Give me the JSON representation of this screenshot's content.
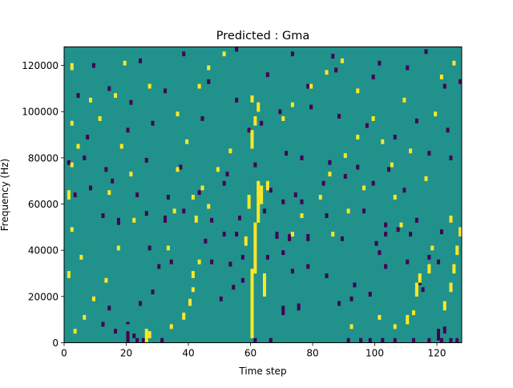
{
  "chart_data": {
    "type": "heatmap",
    "title": "Predicted : Gma",
    "xlabel": "Time step",
    "ylabel": "Frequency (Hz)",
    "xlim": [
      0,
      128
    ],
    "ylim": [
      0,
      128000
    ],
    "x_ticks": [
      {
        "value": 0,
        "label": "0"
      },
      {
        "value": 20,
        "label": "20"
      },
      {
        "value": 40,
        "label": "40"
      },
      {
        "value": 60,
        "label": "60"
      },
      {
        "value": 80,
        "label": "80"
      },
      {
        "value": 100,
        "label": "100"
      },
      {
        "value": 120,
        "label": "120"
      }
    ],
    "y_ticks": [
      {
        "value": 0,
        "label": "0"
      },
      {
        "value": 20000,
        "label": "20000"
      },
      {
        "value": 40000,
        "label": "40000"
      },
      {
        "value": 60000,
        "label": "60000"
      },
      {
        "value": 80000,
        "label": "80000"
      },
      {
        "value": 100000,
        "label": "100000"
      },
      {
        "value": 120000,
        "label": "120000"
      }
    ],
    "grid": false,
    "colormap": "viridis",
    "colors": {
      "background": "#21918c",
      "low": "#440154",
      "high": "#fde725"
    },
    "grid_size": [
      128,
      128
    ],
    "bin_width_hz": 1000,
    "background_value": 0,
    "low_cells": [
      [
        20,
        0,
        5
      ],
      [
        23,
        0,
        2
      ],
      [
        25,
        0,
        2
      ],
      [
        22,
        2,
        2
      ],
      [
        31,
        0,
        2
      ],
      [
        16,
        4,
        2
      ],
      [
        12,
        7,
        2
      ],
      [
        20,
        8,
        1
      ],
      [
        61,
        0,
        2
      ],
      [
        66,
        0,
        2
      ],
      [
        91,
        0,
        2
      ],
      [
        95,
        0,
        2
      ],
      [
        98,
        0,
        2
      ],
      [
        102,
        0,
        2
      ],
      [
        106,
        0,
        2
      ],
      [
        112,
        0,
        2
      ],
      [
        117,
        0,
        2
      ],
      [
        121,
        0,
        2
      ],
      [
        122,
        4,
        3
      ],
      [
        120,
        1,
        5
      ],
      [
        124,
        0,
        2
      ],
      [
        126,
        0,
        2
      ],
      [
        70,
        12,
        4
      ],
      [
        75,
        14,
        3
      ],
      [
        88,
        16,
        2
      ],
      [
        92,
        18,
        2
      ],
      [
        98,
        20,
        2
      ],
      [
        115,
        22,
        2
      ],
      [
        114,
        25,
        2
      ],
      [
        14,
        14,
        2
      ],
      [
        24,
        16,
        2
      ],
      [
        28,
        21,
        2
      ],
      [
        50,
        18,
        2
      ],
      [
        54,
        23,
        2
      ],
      [
        57,
        26,
        2
      ],
      [
        60,
        29,
        2
      ],
      [
        73,
        30,
        2
      ],
      [
        78,
        32,
        2
      ],
      [
        84,
        28,
        2
      ],
      [
        93,
        24,
        2
      ],
      [
        103,
        32,
        2
      ],
      [
        110,
        34,
        2
      ],
      [
        30,
        32,
        2
      ],
      [
        34,
        34,
        2
      ],
      [
        47,
        34,
        2
      ],
      [
        53,
        33,
        2
      ],
      [
        57,
        36,
        2
      ],
      [
        65,
        36,
        2
      ],
      [
        70,
        38,
        2
      ],
      [
        101,
        38,
        2
      ],
      [
        117,
        36,
        2
      ],
      [
        120,
        34,
        2
      ],
      [
        27,
        40,
        2
      ],
      [
        45,
        43,
        2
      ],
      [
        51,
        46,
        2
      ],
      [
        55,
        46,
        2
      ],
      [
        68,
        45,
        3
      ],
      [
        72,
        44,
        3
      ],
      [
        78,
        44,
        3
      ],
      [
        89,
        44,
        2
      ],
      [
        100,
        42,
        2
      ],
      [
        103,
        46,
        2
      ],
      [
        107,
        48,
        2
      ],
      [
        111,
        46,
        2
      ],
      [
        121,
        47,
        2
      ],
      [
        12,
        54,
        2
      ],
      [
        17,
        51,
        3
      ],
      [
        26,
        55,
        2
      ],
      [
        32,
        52,
        3
      ],
      [
        38,
        56,
        2
      ],
      [
        47,
        52,
        2
      ],
      [
        56,
        53,
        2
      ],
      [
        64,
        56,
        2
      ],
      [
        70,
        60,
        2
      ],
      [
        76,
        60,
        2
      ],
      [
        84,
        54,
        2
      ],
      [
        96,
        56,
        2
      ],
      [
        103,
        50,
        2
      ],
      [
        113,
        52,
        2
      ],
      [
        3,
        63,
        2
      ],
      [
        8,
        66,
        2
      ],
      [
        15,
        69,
        2
      ],
      [
        23,
        63,
        2
      ],
      [
        33,
        62,
        2
      ],
      [
        43,
        64,
        2
      ],
      [
        51,
        68,
        2
      ],
      [
        62,
        61,
        2
      ],
      [
        66,
        65,
        2
      ],
      [
        74,
        63,
        2
      ],
      [
        83,
        68,
        2
      ],
      [
        90,
        71,
        2
      ],
      [
        99,
        68,
        2
      ],
      [
        109,
        65,
        2
      ],
      [
        1,
        77,
        2
      ],
      [
        6,
        79,
        2
      ],
      [
        13,
        74,
        2
      ],
      [
        26,
        78,
        2
      ],
      [
        37,
        75,
        2
      ],
      [
        52,
        72,
        2
      ],
      [
        61,
        76,
        2
      ],
      [
        71,
        81,
        2
      ],
      [
        76,
        79,
        2
      ],
      [
        85,
        77,
        2
      ],
      [
        94,
        75,
        2
      ],
      [
        104,
        74,
        2
      ],
      [
        117,
        81,
        2
      ],
      [
        124,
        79,
        2
      ],
      [
        7,
        88,
        2
      ],
      [
        20,
        91,
        2
      ],
      [
        28,
        94,
        2
      ],
      [
        44,
        96,
        2
      ],
      [
        59,
        91,
        2
      ],
      [
        63,
        94,
        2
      ],
      [
        69,
        99,
        2
      ],
      [
        79,
        101,
        2
      ],
      [
        88,
        97,
        2
      ],
      [
        97,
        93,
        2
      ],
      [
        106,
        88,
        2
      ],
      [
        113,
        95,
        2
      ],
      [
        123,
        91,
        2
      ],
      [
        4,
        106,
        2
      ],
      [
        14,
        109,
        2
      ],
      [
        21,
        103,
        2
      ],
      [
        32,
        108,
        2
      ],
      [
        46,
        112,
        2
      ],
      [
        55,
        104,
        2
      ],
      [
        65,
        115,
        2
      ],
      [
        78,
        110,
        2
      ],
      [
        87,
        117,
        2
      ],
      [
        99,
        114,
        2
      ],
      [
        110,
        118,
        2
      ],
      [
        122,
        110,
        2
      ],
      [
        9,
        119,
        2
      ],
      [
        24,
        121,
        2
      ],
      [
        38,
        124,
        2
      ],
      [
        55,
        126,
        2
      ],
      [
        73,
        124,
        2
      ],
      [
        86,
        123,
        2
      ],
      [
        101,
        120,
        2
      ],
      [
        116,
        125,
        2
      ],
      [
        127,
        112,
        2
      ]
    ],
    "high_cells": [
      [
        26,
        0,
        6
      ],
      [
        27,
        2,
        3
      ],
      [
        34,
        6,
        2
      ],
      [
        38,
        10,
        3
      ],
      [
        40,
        16,
        3
      ],
      [
        41,
        22,
        2
      ],
      [
        41,
        28,
        3
      ],
      [
        43,
        34,
        2
      ],
      [
        42,
        52,
        3
      ],
      [
        46,
        58,
        2
      ],
      [
        44,
        66,
        2
      ],
      [
        49,
        74,
        2
      ],
      [
        53,
        82,
        2
      ],
      [
        60,
        2,
        30
      ],
      [
        61,
        30,
        22
      ],
      [
        62,
        52,
        18
      ],
      [
        63,
        60,
        8
      ],
      [
        64,
        20,
        10
      ],
      [
        65,
        66,
        4
      ],
      [
        58,
        42,
        4
      ],
      [
        59,
        58,
        6
      ],
      [
        60,
        84,
        8
      ],
      [
        61,
        94,
        4
      ],
      [
        60,
        104,
        3
      ],
      [
        62,
        100,
        4
      ],
      [
        73,
        46,
        2
      ],
      [
        76,
        54,
        2
      ],
      [
        82,
        62,
        2
      ],
      [
        85,
        72,
        2
      ],
      [
        90,
        80,
        2
      ],
      [
        94,
        88,
        2
      ],
      [
        3,
        4,
        2
      ],
      [
        6,
        10,
        2
      ],
      [
        9,
        18,
        2
      ],
      [
        1,
        28,
        3
      ],
      [
        5,
        36,
        2
      ],
      [
        2,
        48,
        2
      ],
      [
        1,
        62,
        4
      ],
      [
        2,
        76,
        2
      ],
      [
        4,
        84,
        2
      ],
      [
        2,
        94,
        2
      ],
      [
        8,
        104,
        2
      ],
      [
        2,
        118,
        3
      ],
      [
        13,
        26,
        2
      ],
      [
        17,
        40,
        2
      ],
      [
        22,
        52,
        2
      ],
      [
        14,
        64,
        2
      ],
      [
        21,
        72,
        2
      ],
      [
        18,
        84,
        2
      ],
      [
        11,
        96,
        2
      ],
      [
        16,
        106,
        2
      ],
      [
        27,
        110,
        2
      ],
      [
        19,
        120,
        2
      ],
      [
        33,
        40,
        2
      ],
      [
        35,
        56,
        2
      ],
      [
        41,
        62,
        2
      ],
      [
        36,
        74,
        2
      ],
      [
        39,
        86,
        2
      ],
      [
        36,
        98,
        2
      ],
      [
        43,
        110,
        2
      ],
      [
        46,
        118,
        2
      ],
      [
        51,
        124,
        2
      ],
      [
        92,
        6,
        2
      ],
      [
        101,
        10,
        2
      ],
      [
        106,
        6,
        2
      ],
      [
        110,
        8,
        4
      ],
      [
        112,
        12,
        2
      ],
      [
        113,
        20,
        6
      ],
      [
        114,
        26,
        4
      ],
      [
        117,
        30,
        4
      ],
      [
        122,
        14,
        4
      ],
      [
        124,
        22,
        4
      ],
      [
        125,
        30,
        4
      ],
      [
        126,
        38,
        4
      ],
      [
        127,
        46,
        4
      ],
      [
        124,
        52,
        3
      ],
      [
        118,
        40,
        2
      ],
      [
        108,
        50,
        2
      ],
      [
        106,
        62,
        2
      ],
      [
        116,
        70,
        2
      ],
      [
        111,
        82,
        2
      ],
      [
        119,
        98,
        2
      ],
      [
        109,
        104,
        2
      ],
      [
        121,
        114,
        2
      ],
      [
        125,
        120,
        2
      ],
      [
        70,
        96,
        2
      ],
      [
        73,
        102,
        2
      ],
      [
        79,
        110,
        2
      ],
      [
        84,
        116,
        2
      ],
      [
        89,
        121,
        2
      ],
      [
        94,
        108,
        2
      ],
      [
        99,
        96,
        2
      ],
      [
        102,
        86,
        2
      ],
      [
        105,
        76,
        2
      ],
      [
        96,
        66,
        2
      ],
      [
        91,
        56,
        2
      ],
      [
        86,
        46,
        2
      ]
    ]
  }
}
